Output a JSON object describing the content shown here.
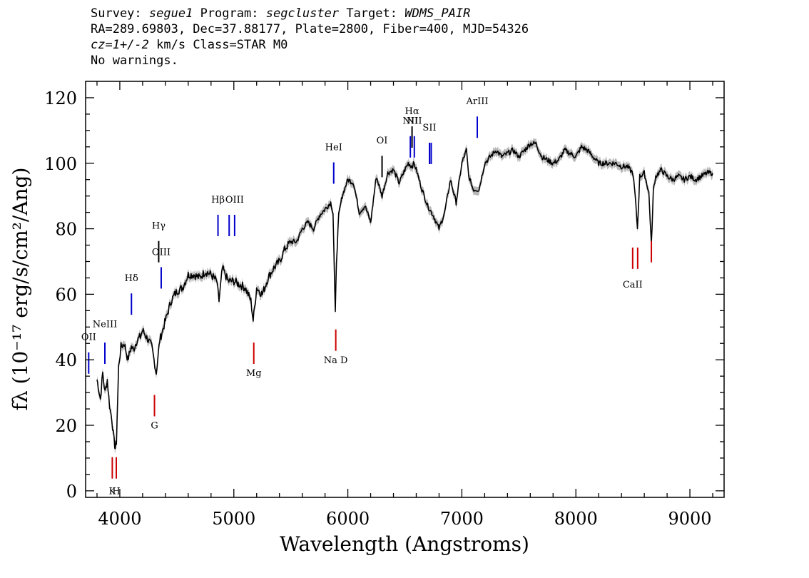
{
  "header": {
    "line1": {
      "survey_label": "Survey:",
      "survey": "segue1",
      "program_label": "Program:",
      "program": "segcluster",
      "target_label": "Target:",
      "target": "WDMS_PAIR"
    },
    "line2": "RA=289.69803, Dec=37.88177, Plate=2800, Fiber=400, MJD=54326",
    "line3": {
      "cz_label": "cz=",
      "cz_value": "1+/-2",
      "cz_unit": " km/s Class=STAR M0"
    },
    "line4": "No warnings."
  },
  "chart_data": {
    "type": "line",
    "xlabel": "Wavelength (Angstroms)",
    "ylabel": "fλ (10⁻¹⁷ erg/s/cm²/Ang)",
    "xlim": [
      3700,
      9300
    ],
    "ylim": [
      -2,
      125
    ],
    "x_ticks": [
      4000,
      5000,
      6000,
      7000,
      8000,
      9000
    ],
    "y_ticks": [
      0,
      20,
      40,
      60,
      80,
      100,
      120
    ],
    "x_tick_labels": [
      "4000",
      "5000",
      "6000",
      "7000",
      "8000",
      "9000"
    ],
    "y_tick_labels": [
      "0",
      "20",
      "40",
      "60",
      "80",
      "100",
      "120"
    ],
    "series": [
      {
        "color": "#000000",
        "error_color": "#b8b8b8",
        "x": [
          3800,
          3830,
          3850,
          3870,
          3890,
          3910,
          3930,
          3950,
          3960,
          3970,
          3990,
          4010,
          4040,
          4070,
          4100,
          4120,
          4150,
          4180,
          4200,
          4250,
          4280,
          4300,
          4320,
          4350,
          4400,
          4450,
          4500,
          4550,
          4600,
          4650,
          4700,
          4750,
          4800,
          4850,
          4870,
          4900,
          4950,
          5000,
          5050,
          5100,
          5150,
          5170,
          5200,
          5250,
          5300,
          5350,
          5400,
          5450,
          5500,
          5550,
          5600,
          5650,
          5700,
          5750,
          5800,
          5850,
          5870,
          5890,
          5900,
          5920,
          5950,
          6000,
          6050,
          6100,
          6150,
          6200,
          6250,
          6300,
          6350,
          6400,
          6450,
          6500,
          6530,
          6563,
          6580,
          6600,
          6650,
          6700,
          6750,
          6800,
          6850,
          6900,
          6950,
          7000,
          7040,
          7060,
          7100,
          7150,
          7200,
          7250,
          7300,
          7350,
          7400,
          7450,
          7500,
          7550,
          7600,
          7650,
          7700,
          7750,
          7800,
          7850,
          7900,
          7950,
          8000,
          8050,
          8100,
          8150,
          8200,
          8250,
          8300,
          8350,
          8400,
          8450,
          8500,
          8520,
          8540,
          8560,
          8600,
          8640,
          8662,
          8680,
          8700,
          8750,
          8800,
          8850,
          8900,
          8950,
          9000,
          9050,
          9100,
          9150,
          9200
        ],
        "y": [
          34,
          28,
          36,
          30,
          34,
          26,
          22,
          15,
          13,
          15,
          38,
          44,
          45,
          40,
          44,
          43,
          46,
          47,
          49,
          46,
          44,
          40,
          36,
          46,
          52,
          58,
          61,
          62,
          66,
          66,
          65,
          67,
          66,
          64,
          58,
          68,
          64,
          64,
          63,
          62,
          58,
          52,
          62,
          60,
          65,
          68,
          70,
          74,
          76,
          76,
          80,
          82,
          80,
          84,
          86,
          88,
          85,
          54,
          70,
          84,
          90,
          95,
          94,
          85,
          87,
          82,
          96,
          90,
          97,
          98,
          94,
          98,
          100,
          99,
          100,
          98,
          92,
          87,
          84,
          80,
          85,
          95,
          88,
          100,
          104,
          96,
          92,
          92,
          100,
          102,
          104,
          102,
          103,
          104,
          102,
          104,
          106,
          106,
          102,
          101,
          100,
          101,
          104,
          103,
          102,
          105,
          104,
          102,
          100,
          100,
          100,
          100,
          99,
          99,
          97,
          90,
          80,
          96,
          97,
          91,
          75,
          92,
          96,
          98,
          96,
          95,
          96,
          95,
          96,
          95,
          96,
          97,
          97
        ]
      }
    ],
    "emission_lines": [
      {
        "label": "OII",
        "x": 3727,
        "y": 39,
        "label_y": 46,
        "color": "#0000cc"
      },
      {
        "label": "NeIII",
        "x": 3869,
        "y": 42,
        "label_y": 50,
        "color": "#0000cc"
      },
      {
        "label": "Hδ",
        "x": 4102,
        "y": 57,
        "label_y": 64,
        "color": "#0000cc"
      },
      {
        "label": "Hγ",
        "x": 4341,
        "y": 73,
        "label_y": 80,
        "color": "#000000"
      },
      {
        "label": "OIII",
        "x": 4363,
        "y": 65,
        "label_y": 72,
        "color": "#0000cc"
      },
      {
        "label": "Hβ",
        "x": 4861,
        "y": 81,
        "label_y": 88,
        "color": "#0000cc"
      },
      {
        "label": "OIII",
        "x": 4959,
        "y": 81,
        "label_y": 0,
        "color": "#0000cc"
      },
      {
        "label": "OIII",
        "x": 5007,
        "y": 81,
        "label_y": 88,
        "color": "#0000cc"
      },
      {
        "label": "HeI",
        "x": 5876,
        "y": 97,
        "label_y": 104,
        "color": "#0000cc"
      },
      {
        "label": "OI",
        "x": 6300,
        "y": 99,
        "label_y": 106,
        "color": "#000000"
      },
      {
        "label": "NII",
        "x": 6548,
        "y": 105,
        "label_y": 112,
        "color": "#0000cc"
      },
      {
        "label": "Hα",
        "x": 6563,
        "y": 108,
        "label_y": 115,
        "color": "#000000"
      },
      {
        "label": "NII",
        "x": 6583,
        "y": 105,
        "label_y": 112,
        "color": "#0000cc"
      },
      {
        "label": "SII",
        "x": 6716,
        "y": 103,
        "label_y": 110,
        "color": "#0000cc"
      },
      {
        "label": "SII",
        "x": 6731,
        "y": 103,
        "label_y": 0,
        "color": "#0000cc"
      },
      {
        "label": "ArIII",
        "x": 7135,
        "y": 111,
        "label_y": 118,
        "color": "#0000cc"
      }
    ],
    "absorption_lines": [
      {
        "label": "K",
        "x": 3934,
        "y": 7,
        "label_y": -1,
        "color": "#cc0000"
      },
      {
        "label": "H",
        "x": 3969,
        "y": 7,
        "label_y": -1,
        "color": "#cc0000"
      },
      {
        "label": "G",
        "x": 4304,
        "y": 26,
        "label_y": 19,
        "color": "#cc0000"
      },
      {
        "label": "Mg",
        "x": 5175,
        "y": 42,
        "label_y": 35,
        "color": "#cc0000"
      },
      {
        "label": "Na D",
        "x": 5894,
        "y": 46,
        "label_y": 39,
        "color": "#cc0000"
      },
      {
        "label": "CaII",
        "x": 8498,
        "y": 71,
        "label_y": 62,
        "color": "#cc0000"
      },
      {
        "label": "CaII",
        "x": 8542,
        "y": 71,
        "label_y": 0,
        "color": "#cc0000"
      },
      {
        "label": "CaII",
        "x": 8662,
        "y": 73,
        "label_y": 0,
        "color": "#cc0000"
      }
    ]
  }
}
